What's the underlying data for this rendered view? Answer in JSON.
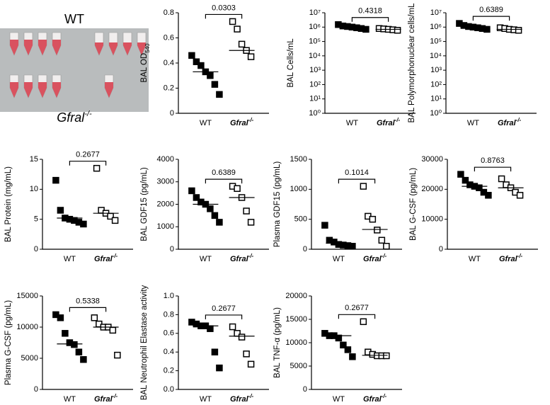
{
  "photo": {
    "top_label": "WT",
    "bottom_label": {
      "text": "Gfral",
      "sup": "-/-"
    }
  },
  "chart_data": [
    {
      "type": "dotplot",
      "y_label": {
        "text": "BAL OD",
        "sub": "540"
      },
      "p_value": 0.0303,
      "categories": [
        {
          "text": "WT"
        },
        {
          "text": "Gfral",
          "sup": "-/-"
        }
      ],
      "groups": [
        {
          "marker": "filled",
          "color": "#000000",
          "values": [
            0.46,
            0.41,
            0.38,
            0.33,
            0.3,
            0.23,
            0.15
          ],
          "median": 0.33
        },
        {
          "marker": "open",
          "color": "#000000",
          "values": [
            0.73,
            0.67,
            0.55,
            0.5,
            0.45
          ],
          "median": 0.5
        }
      ],
      "ylim": [
        0,
        0.8
      ],
      "yticks": [
        0,
        0.2,
        0.4,
        0.6,
        0.8
      ]
    },
    {
      "type": "dotplot",
      "y_label": "BAL Cells/mL",
      "p_value": 0.4318,
      "log_scale": true,
      "categories": [
        {
          "text": "WT"
        },
        {
          "text": "Gfral",
          "sup": "-/-"
        }
      ],
      "groups": [
        {
          "marker": "filled",
          "color": "#000000",
          "values": [
            1500000,
            1200000,
            1100000,
            1000000,
            900000,
            800000,
            700000
          ],
          "median": 1000000
        },
        {
          "marker": "open",
          "color": "#000000",
          "values": [
            800000,
            750000,
            700000,
            650000,
            600000
          ],
          "median": 700000
        }
      ],
      "ylim": [
        1,
        10000000
      ],
      "yticks": [
        {
          "value": 1,
          "label": "10⁰"
        },
        {
          "value": 10,
          "label": "10¹"
        },
        {
          "value": 100,
          "label": "10²"
        },
        {
          "value": 1000,
          "label": "10³"
        },
        {
          "value": 10000,
          "label": "10⁴"
        },
        {
          "value": 100000,
          "label": "10⁵"
        },
        {
          "value": 1000000,
          "label": "10⁶"
        },
        {
          "value": 10000000,
          "label": "10⁷"
        }
      ]
    },
    {
      "type": "dotplot",
      "y_label": "BAL Polymorphonuclear cells/mL",
      "p_value": 0.6389,
      "log_scale": true,
      "categories": [
        {
          "text": "WT"
        },
        {
          "text": "Gfral",
          "sup": "-/-"
        }
      ],
      "groups": [
        {
          "marker": "filled",
          "color": "#000000",
          "values": [
            1800000,
            1300000,
            1100000,
            1000000,
            900000,
            800000,
            700000
          ],
          "median": 1000000
        },
        {
          "marker": "open",
          "color": "#000000",
          "values": [
            900000,
            800000,
            700000,
            650000,
            600000
          ],
          "median": 700000
        }
      ],
      "ylim": [
        1,
        10000000
      ],
      "yticks": [
        {
          "value": 1,
          "label": "10⁰"
        },
        {
          "value": 10,
          "label": "10¹"
        },
        {
          "value": 100,
          "label": "10²"
        },
        {
          "value": 1000,
          "label": "10³"
        },
        {
          "value": 10000,
          "label": "10⁴"
        },
        {
          "value": 100000,
          "label": "10⁵"
        },
        {
          "value": 1000000,
          "label": "10⁶"
        },
        {
          "value": 10000000,
          "label": "10⁷"
        }
      ]
    },
    {
      "type": "dotplot",
      "y_label": "BAL Protein (mg/mL)",
      "p_value": 0.2677,
      "categories": [
        {
          "text": "WT"
        },
        {
          "text": "Gfral",
          "sup": "-/-"
        }
      ],
      "groups": [
        {
          "marker": "filled",
          "color": "#000000",
          "values": [
            11.5,
            6.5,
            5.2,
            5,
            4.8,
            4.5,
            4.2
          ],
          "median": 5.2
        },
        {
          "marker": "open",
          "color": "#000000",
          "values": [
            13.5,
            6.5,
            6,
            5.5,
            4.8
          ],
          "median": 6
        }
      ],
      "ylim": [
        0,
        15
      ],
      "yticks": [
        0,
        5,
        10,
        15
      ]
    },
    {
      "type": "dotplot",
      "y_label": "BAL GDF15 (pg/mL)",
      "p_value": 0.6389,
      "categories": [
        {
          "text": "WT"
        },
        {
          "text": "Gfral",
          "sup": "-/-"
        }
      ],
      "groups": [
        {
          "marker": "filled",
          "color": "#000000",
          "values": [
            2600,
            2300,
            2100,
            2000,
            1800,
            1500,
            1200
          ],
          "median": 2000
        },
        {
          "marker": "open",
          "color": "#000000",
          "values": [
            2800,
            2700,
            2300,
            1700,
            1200
          ],
          "median": 2300
        }
      ],
      "ylim": [
        0,
        4000
      ],
      "yticks": [
        0,
        1000,
        2000,
        3000,
        4000
      ]
    },
    {
      "type": "dotplot",
      "y_label": "Plasma GDF15 (pg/mL)",
      "p_value": 0.1014,
      "categories": [
        {
          "text": "WT"
        },
        {
          "text": "Gfral",
          "sup": "-/-"
        }
      ],
      "groups": [
        {
          "marker": "filled",
          "color": "#000000",
          "values": [
            400,
            150,
            120,
            80,
            70,
            60,
            50
          ],
          "median": 100
        },
        {
          "marker": "open",
          "color": "#000000",
          "values": [
            1050,
            550,
            500,
            320,
            150,
            50
          ],
          "median": 330
        }
      ],
      "ylim": [
        0,
        1500
      ],
      "yticks": [
        0,
        500,
        1000,
        1500
      ]
    },
    {
      "type": "dotplot",
      "y_label": "BAL G-CSF (pg/mL)",
      "p_value": 0.8763,
      "categories": [
        {
          "text": "WT"
        },
        {
          "text": "Gfral",
          "sup": "-/-"
        }
      ],
      "groups": [
        {
          "marker": "filled",
          "color": "#000000",
          "values": [
            25000,
            23000,
            21500,
            21000,
            20500,
            19000,
            18000
          ],
          "median": 21000
        },
        {
          "marker": "open",
          "color": "#000000",
          "values": [
            23500,
            21500,
            20500,
            19000,
            18000
          ],
          "median": 20500
        }
      ],
      "ylim": [
        0,
        30000
      ],
      "yticks": [
        0,
        10000,
        20000,
        30000
      ]
    },
    {
      "type": "dotplot",
      "y_label": "Plasma G-CSF (pg/mL)",
      "p_value": 0.5338,
      "categories": [
        {
          "text": "WT"
        },
        {
          "text": "Gfral",
          "sup": "-/-"
        }
      ],
      "groups": [
        {
          "marker": "filled",
          "color": "#000000",
          "values": [
            12000,
            11500,
            9000,
            7500,
            7200,
            6000,
            4800
          ],
          "median": 7300
        },
        {
          "marker": "open",
          "color": "#000000",
          "values": [
            11500,
            10500,
            10000,
            10000,
            9500,
            5500
          ],
          "median": 10000
        }
      ],
      "ylim": [
        0,
        15000
      ],
      "yticks": [
        0,
        5000,
        10000,
        15000
      ]
    },
    {
      "type": "dotplot",
      "y_label": "BAL Neutrophil Elastase activity",
      "p_value": 0.2677,
      "categories": [
        {
          "text": "WT"
        },
        {
          "text": "Gfral",
          "sup": "-/-"
        }
      ],
      "groups": [
        {
          "marker": "filled",
          "color": "#000000",
          "values": [
            0.72,
            0.7,
            0.68,
            0.68,
            0.65,
            0.4,
            0.23
          ],
          "median": 0.68
        },
        {
          "marker": "open",
          "color": "#000000",
          "values": [
            0.67,
            0.6,
            0.56,
            0.38,
            0.27
          ],
          "median": 0.57
        }
      ],
      "ylim": [
        0,
        1
      ],
      "yticks": [
        {
          "value": 0,
          "label": "0.0"
        },
        0.2,
        0.4,
        0.6,
        0.8,
        {
          "value": 1,
          "label": "1.0"
        }
      ]
    },
    {
      "type": "dotplot",
      "y_label": "BAL TNF-α (pg/mL)",
      "p_value": 0.2677,
      "categories": [
        {
          "text": "WT"
        },
        {
          "text": "Gfral",
          "sup": "-/-"
        }
      ],
      "groups": [
        {
          "marker": "filled",
          "color": "#000000",
          "values": [
            12000,
            11500,
            11500,
            11000,
            9500,
            8500,
            7000
          ],
          "median": 11500
        },
        {
          "marker": "open",
          "color": "#000000",
          "values": [
            14500,
            8000,
            7500,
            7200,
            7200,
            7200
          ],
          "median": 7300
        }
      ],
      "ylim": [
        0,
        20000
      ],
      "yticks": [
        0,
        5000,
        10000,
        15000,
        20000
      ]
    }
  ]
}
